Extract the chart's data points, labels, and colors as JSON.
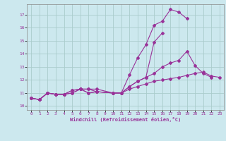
{
  "xlabel": "Windchill (Refroidissement éolien,°C)",
  "background_color": "#cce8ee",
  "grid_color": "#aacccc",
  "line_color": "#993399",
  "xlim": [
    -0.5,
    23.5
  ],
  "ylim": [
    9.7,
    17.8
  ],
  "yticks": [
    10,
    11,
    12,
    13,
    14,
    15,
    16,
    17
  ],
  "xticks": [
    0,
    1,
    2,
    3,
    4,
    5,
    6,
    7,
    8,
    9,
    10,
    11,
    12,
    13,
    14,
    15,
    16,
    17,
    18,
    19,
    20,
    21,
    22,
    23
  ],
  "lines": [
    {
      "x": [
        0,
        1,
        2,
        3,
        4,
        5,
        6,
        7,
        8,
        10,
        11,
        12,
        13,
        14,
        15,
        16,
        17,
        18,
        19
      ],
      "y": [
        10.6,
        10.5,
        11.0,
        10.9,
        10.9,
        11.2,
        11.3,
        11.3,
        11.3,
        11.0,
        11.0,
        12.4,
        13.7,
        14.7,
        16.2,
        16.5,
        17.4,
        17.2,
        16.7
      ]
    },
    {
      "x": [
        0,
        1,
        2,
        3,
        4,
        5,
        6,
        7,
        8,
        10,
        11,
        12,
        13,
        14,
        15,
        16
      ],
      "y": [
        10.6,
        10.5,
        11.0,
        10.9,
        10.9,
        11.2,
        11.3,
        11.3,
        11.1,
        11.0,
        11.0,
        11.5,
        11.9,
        12.2,
        14.9,
        15.6
      ]
    },
    {
      "x": [
        0,
        1,
        2,
        3,
        4,
        5,
        6,
        7,
        8,
        10,
        11,
        12,
        13,
        14,
        15,
        16,
        17,
        18,
        19,
        20,
        21,
        22
      ],
      "y": [
        10.6,
        10.5,
        11.0,
        10.9,
        10.9,
        11.0,
        11.3,
        11.0,
        11.1,
        11.0,
        11.0,
        11.5,
        11.9,
        12.2,
        12.5,
        13.0,
        13.3,
        13.5,
        14.2,
        13.1,
        12.5,
        12.2
      ]
    },
    {
      "x": [
        0,
        1,
        2,
        3,
        4,
        5,
        6,
        7,
        8,
        10,
        11,
        12,
        13,
        14,
        15,
        16,
        17,
        18,
        19,
        20,
        21,
        22,
        23
      ],
      "y": [
        10.6,
        10.5,
        11.0,
        10.9,
        10.9,
        11.0,
        11.3,
        11.0,
        11.1,
        11.0,
        11.0,
        11.3,
        11.5,
        11.7,
        11.9,
        12.0,
        12.1,
        12.2,
        12.35,
        12.5,
        12.6,
        12.3,
        12.2
      ]
    }
  ]
}
